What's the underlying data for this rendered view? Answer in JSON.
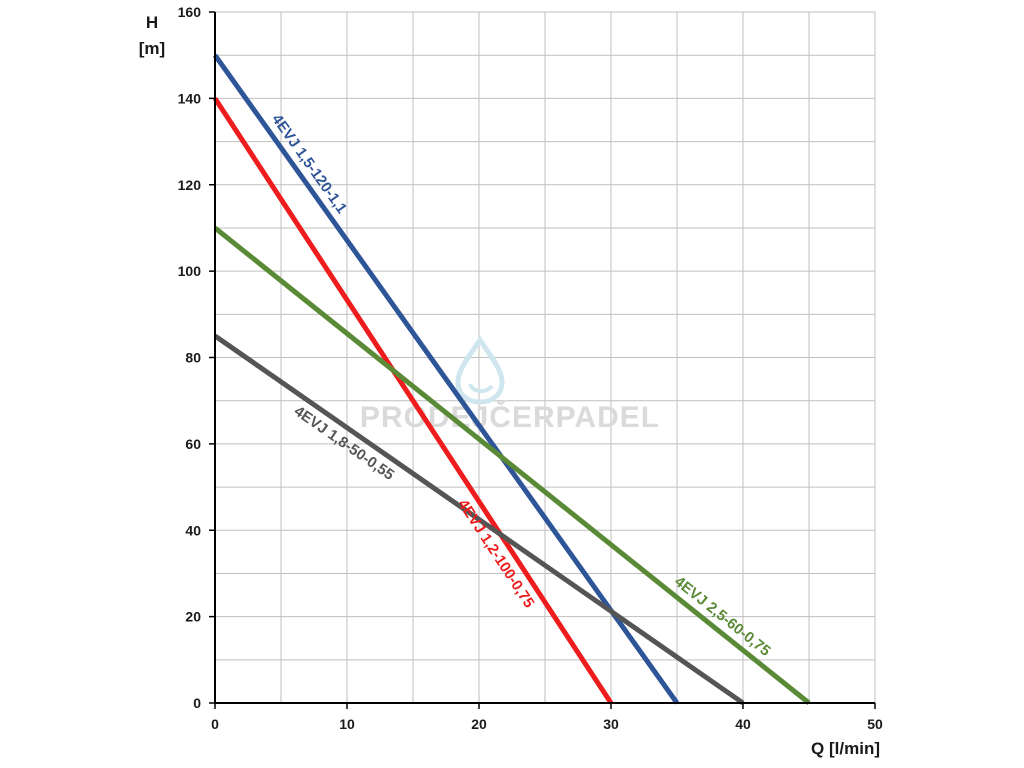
{
  "watermark": {
    "text": "PRODEJČERPADEL"
  },
  "chart_data": {
    "type": "line",
    "xlabel": "Q [l/min]",
    "ylabel_line1": "H",
    "ylabel_line2": "[m]",
    "xlim": [
      0,
      50
    ],
    "ylim": [
      0,
      160
    ],
    "xticks": [
      0,
      10,
      20,
      30,
      40,
      50
    ],
    "yticks": [
      0,
      20,
      40,
      60,
      80,
      100,
      120,
      140,
      160
    ],
    "x_minor_step": 5,
    "y_minor_step": 10,
    "grid": true,
    "legend": "none",
    "series": [
      {
        "name": "4EVJ 1,5-120-1,1",
        "color": "#2e5597",
        "x": [
          0,
          35
        ],
        "y": [
          150,
          0
        ]
      },
      {
        "name": "4EVJ 1,2-100-0,75",
        "color": "#ee1c1c",
        "x": [
          0,
          30
        ],
        "y": [
          140,
          0
        ]
      },
      {
        "name": "4EVJ 2,5-60-0,75",
        "color": "#5a8a35",
        "x": [
          0,
          45
        ],
        "y": [
          110,
          0
        ]
      },
      {
        "name": "4EVJ 1,8-50-0,55",
        "color": "#555555",
        "x": [
          0,
          40
        ],
        "y": [
          85,
          0
        ]
      }
    ]
  }
}
